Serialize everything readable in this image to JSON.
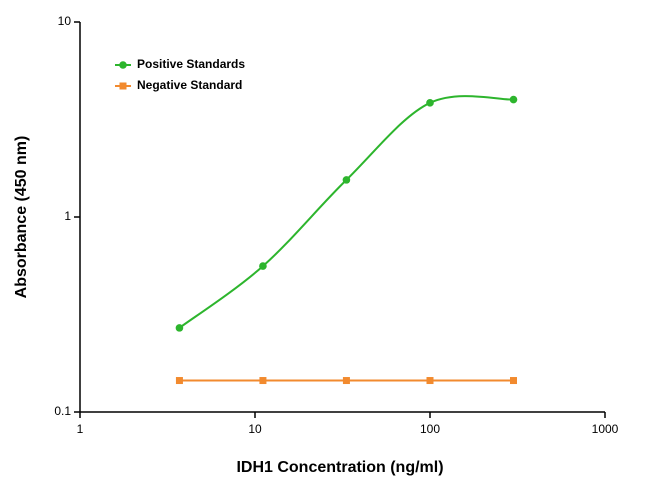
{
  "chart_data": {
    "type": "line",
    "x_label": "IDH1 Concentration (ng/ml)",
    "y_label": "Absorbance (450 nm)",
    "x": [
      3.7,
      11.1,
      33.3,
      100,
      300
    ],
    "series": [
      {
        "name": "Positive Standards",
        "color": "#2db52d",
        "marker": "circle",
        "values": [
          0.27,
          0.56,
          1.55,
          3.85,
          4.0
        ]
      },
      {
        "name": "Negative Standard",
        "color": "#f28a2e",
        "marker": "square",
        "values": [
          0.145,
          0.145,
          0.145,
          0.145,
          0.145
        ]
      }
    ],
    "xlim": [
      1,
      1000
    ],
    "xticks": [
      1,
      10,
      100,
      1000
    ],
    "xscale": "log",
    "ylim": [
      0.1,
      10
    ],
    "yticks": [
      0.1,
      1,
      10
    ],
    "yscale": "log",
    "legend": "upper left"
  }
}
